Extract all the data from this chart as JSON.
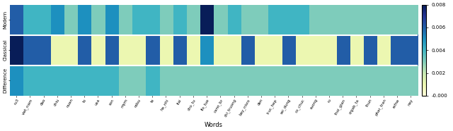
{
  "row_labels": [
    "Modern",
    "Classical",
    "Difference"
  ],
  "col_labels": [
    "ru3",
    "viet_nam",
    "dao",
    "chiu",
    "nuan",
    "to",
    "usa",
    "son",
    "mym",
    "ndsu",
    "te",
    "ha_nhi",
    "flai",
    "cho_tu",
    "fio_tue",
    "cano_br",
    "chi_truong",
    "bay_nisro",
    "den",
    "truc_hep",
    "sei_dung",
    "co_chuc",
    "suong",
    "ru",
    "thoi_gian",
    "crgab_ta",
    "thun",
    "phar_tran",
    "refne",
    "nay"
  ],
  "data": [
    [
      0.006,
      0.004,
      0.004,
      0.005,
      0.003,
      0.005,
      0.003,
      0.005,
      0.003,
      0.004,
      0.004,
      0.003,
      0.004,
      0.003,
      0.008,
      0.003,
      0.004,
      0.003,
      0.003,
      0.004,
      0.004,
      0.004,
      0.003,
      0.003,
      0.003,
      0.003,
      0.003,
      0.003,
      0.003,
      0.003
    ],
    [
      0.008,
      0.006,
      0.006,
      0.001,
      0.001,
      0.006,
      0.001,
      0.006,
      0.001,
      0.001,
      0.006,
      0.001,
      0.006,
      0.001,
      0.005,
      0.001,
      0.001,
      0.006,
      0.001,
      0.001,
      0.006,
      0.001,
      0.001,
      0.001,
      0.006,
      0.001,
      0.006,
      0.001,
      0.006,
      0.006
    ],
    [
      0.005,
      0.004,
      0.004,
      0.004,
      0.004,
      0.004,
      0.004,
      0.004,
      0.003,
      0.003,
      0.004,
      0.003,
      0.003,
      0.003,
      0.003,
      0.003,
      0.003,
      0.003,
      0.003,
      0.003,
      0.003,
      0.003,
      0.003,
      0.003,
      0.003,
      0.003,
      0.003,
      0.003,
      0.003,
      0.003
    ]
  ],
  "vmin": 0.0,
  "vmax": 0.008,
  "cmap": "YlGnBu",
  "colorbar_ticks": [
    0.0,
    0.002,
    0.004,
    0.006,
    0.008
  ],
  "colorbar_ticklabels": [
    "-0.000",
    "0.002",
    "0.004",
    "0.006",
    "0.008"
  ],
  "xlabel": "Words",
  "figsize": [
    6.4,
    1.86
  ],
  "dpi": 100
}
